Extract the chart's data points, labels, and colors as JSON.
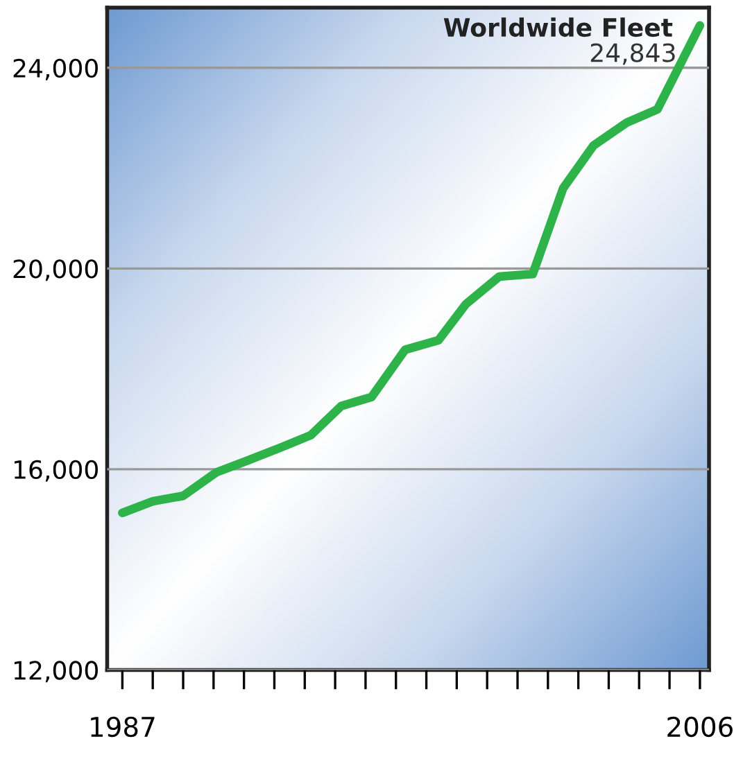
{
  "chart_data": {
    "type": "line",
    "title": "Worldwide Fleet",
    "x": [
      1987,
      1988.0,
      1989.0,
      1990.1,
      1991.1,
      1992.2,
      1993.2,
      1994.2,
      1995.2,
      1996.3,
      1997.4,
      1998.3,
      1999.4,
      2000.5,
      2001.5,
      2002.5,
      2003.6,
      2004.6,
      2006.0
    ],
    "series": [
      {
        "color": "#2db34a",
        "values": [
          15130,
          15360,
          15470,
          15940,
          16170,
          16430,
          16680,
          17260,
          17440,
          18380,
          18570,
          19290,
          19840,
          19890,
          21600,
          22450,
          22910,
          23170,
          24843
        ]
      }
    ],
    "annotations": [
      {
        "text": "24,843",
        "x": 2006.0,
        "y": 24843
      }
    ],
    "xlim": [
      1986.5,
      2006.3
    ],
    "ylim": [
      12000,
      25200
    ],
    "xticks": [
      1987,
      {
        "value": 1988,
        "label": null
      },
      {
        "value": 1989,
        "label": null
      },
      {
        "value": 1990,
        "label": null
      },
      {
        "value": 1991,
        "label": null
      },
      {
        "value": 1992,
        "label": null
      },
      {
        "value": 1993,
        "label": null
      },
      {
        "value": 1994,
        "label": null
      },
      {
        "value": 1995,
        "label": null
      },
      {
        "value": 1996,
        "label": null
      },
      {
        "value": 1997,
        "label": null
      },
      {
        "value": 1998,
        "label": null
      },
      {
        "value": 1999,
        "label": null
      },
      {
        "value": 2000,
        "label": null
      },
      {
        "value": 2001,
        "label": null
      },
      {
        "value": 2002,
        "label": null
      },
      {
        "value": 2003,
        "label": null
      },
      {
        "value": 2004,
        "label": null
      },
      {
        "value": 2005,
        "label": null
      },
      2006
    ],
    "yticks": [
      {
        "value": 12000,
        "label": "12,000"
      },
      {
        "value": 16000,
        "label": "16,000"
      },
      {
        "value": 20000,
        "label": "20,000"
      },
      {
        "value": 24000,
        "label": "24,000"
      }
    ],
    "grid": "y",
    "marker": "none",
    "line_style": "solid",
    "legend": false
  }
}
